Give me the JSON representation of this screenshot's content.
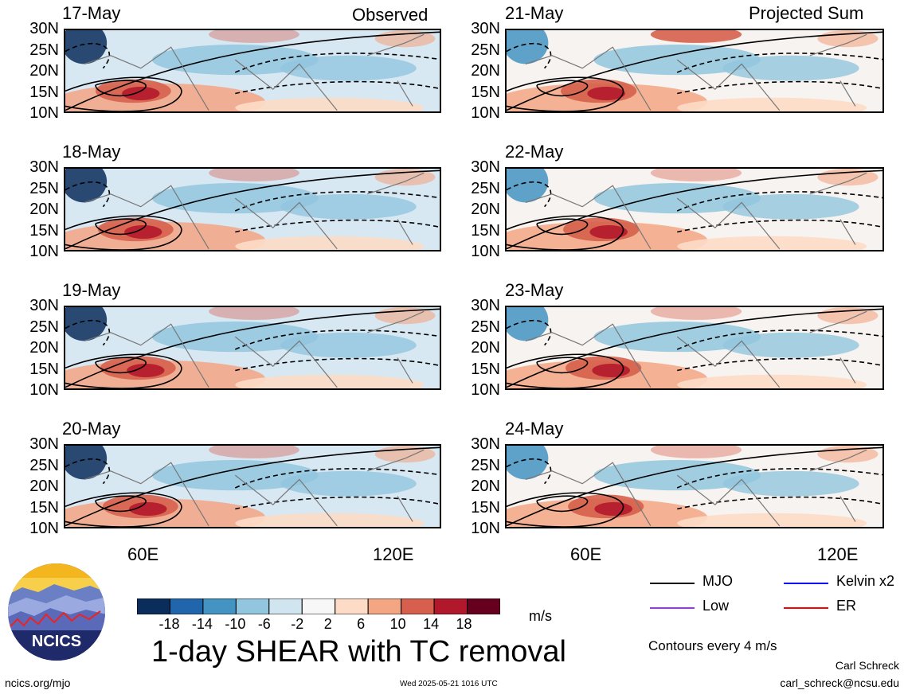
{
  "header": {
    "left_label": "Observed",
    "right_label": "Projected Sum"
  },
  "panels": {
    "left": [
      {
        "date": "17-May"
      },
      {
        "date": "18-May"
      },
      {
        "date": "19-May"
      },
      {
        "date": "20-May"
      }
    ],
    "right": [
      {
        "date": "21-May"
      },
      {
        "date": "22-May"
      },
      {
        "date": "23-May"
      },
      {
        "date": "24-May"
      }
    ]
  },
  "latitude_labels": [
    "30N",
    "25N",
    "20N",
    "15N",
    "10N"
  ],
  "longitude_labels": [
    "60E",
    "120E"
  ],
  "colorbar": {
    "ticks": [
      "-18",
      "-14",
      "-10",
      "-6",
      "-2",
      "2",
      "6",
      "10",
      "14",
      "18"
    ],
    "colors": [
      "#0a2d5c",
      "#2166ac",
      "#4393c3",
      "#92c5de",
      "#d1e5f0",
      "#f7f7f7",
      "#fddbc7",
      "#f4a582",
      "#d6604d",
      "#b2182b",
      "#67001f"
    ],
    "unit": "m/s"
  },
  "legend": {
    "items": [
      {
        "label": "MJO",
        "color": "#000000"
      },
      {
        "label": "Kelvin x2",
        "color": "#0000ff"
      },
      {
        "label": "Low",
        "color": "#9933ff"
      },
      {
        "label": "ER",
        "color": "#ff0000"
      }
    ],
    "contour_note": "Contours every 4 m/s"
  },
  "title": "1-day SHEAR with TC removal",
  "logo_text": "NCICS",
  "footer": {
    "url": "ncics.org/mjo",
    "timestamp": "Wed 2025-05-21 1016 UTC",
    "author": "Carl Schreck",
    "email": "carl_schreck@ncsu.edu"
  }
}
